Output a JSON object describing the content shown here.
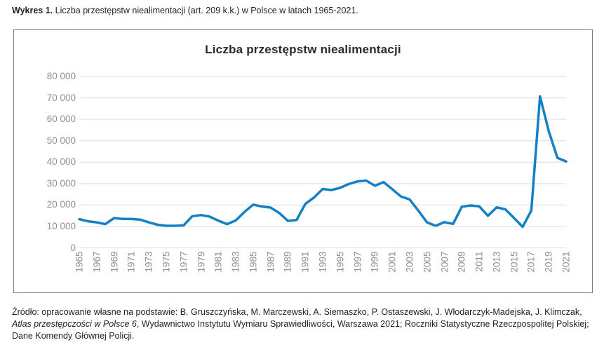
{
  "page": {
    "header": {
      "prefix": "Wykres 1.",
      "text": " Liczba przestępstw niealimentacji (art. 209 k.k.) w Polsce w latach 1965-2021."
    }
  },
  "chart_data": {
    "type": "line",
    "title": "Liczba przestępstw niealimentacji",
    "xlabel": "",
    "ylabel": "",
    "grid": true,
    "legend": "none",
    "line_color": "#1581c5",
    "gridline_color": "#dcdcdc",
    "tick_label_color": "#8f8f8f",
    "ylim": [
      0,
      80000
    ],
    "y_tick_step": 10000,
    "y_tick_labels": [
      "0",
      "10 000",
      "20 000",
      "30 000",
      "40 000",
      "50 000",
      "60 000",
      "70 000",
      "80 000"
    ],
    "x_tick_years": [
      1965,
      1967,
      1969,
      1971,
      1973,
      1975,
      1977,
      1979,
      1981,
      1983,
      1985,
      1987,
      1989,
      1991,
      1993,
      1995,
      1997,
      1999,
      2001,
      2003,
      2005,
      2007,
      2009,
      2011,
      2013,
      2015,
      2017,
      2019,
      2021
    ],
    "x": [
      1965,
      1966,
      1967,
      1968,
      1969,
      1970,
      1971,
      1972,
      1973,
      1974,
      1975,
      1976,
      1977,
      1978,
      1979,
      1980,
      1981,
      1982,
      1983,
      1984,
      1985,
      1986,
      1987,
      1988,
      1989,
      1990,
      1991,
      1992,
      1993,
      1994,
      1995,
      1996,
      1997,
      1998,
      1999,
      2000,
      2001,
      2002,
      2003,
      2004,
      2005,
      2006,
      2007,
      2008,
      2009,
      2010,
      2011,
      2012,
      2013,
      2014,
      2015,
      2016,
      2017,
      2018,
      2019,
      2020,
      2021
    ],
    "values": [
      13400,
      12400,
      11900,
      11100,
      13900,
      13500,
      13500,
      13200,
      11900,
      10800,
      10300,
      10300,
      10500,
      14800,
      15300,
      14600,
      12700,
      11100,
      12800,
      16800,
      20200,
      19300,
      18800,
      16300,
      12600,
      13000,
      20500,
      23500,
      27500,
      27000,
      28000,
      29800,
      31000,
      31400,
      29000,
      30700,
      27400,
      24000,
      22600,
      17400,
      11900,
      10300,
      12000,
      11200,
      19200,
      19800,
      19400,
      15000,
      18900,
      18000,
      14000,
      9800,
      17400,
      70700,
      54500,
      42000,
      40300
    ]
  },
  "source": {
    "prefix": "Źródło: opracowanie własne na podstawie: B. Gruszczyńska, M. Marczewski, A. Siemaszko, P. Ostaszewski, J. Włodarczyk-Madejska, J. Klimczak, ",
    "italic": "Atlas przestępczości w Polsce 6",
    "suffix": ", Wydawnictwo Instytutu Wymiaru Sprawiedliwości, Warszawa 2021; Roczniki Statystyczne Rzeczpospolitej Polskiej; Dane Komendy Głównej Policji."
  }
}
